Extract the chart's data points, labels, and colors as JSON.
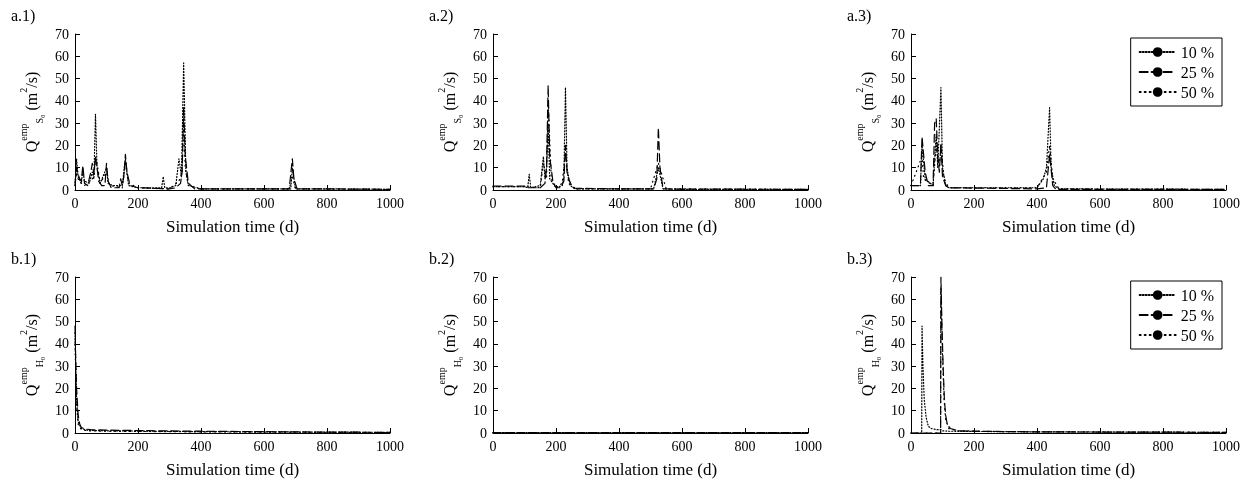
{
  "chart_data": [
    {
      "type": "line",
      "title": "a.1)",
      "xlabel": "Simulation time (d)",
      "ylabel": "Q$^{emp}$$_{S₀}$ (m$^{2}$/s)",
      "xlim": [
        0,
        1000
      ],
      "xticks": [
        0,
        200,
        400,
        600,
        800,
        1000
      ],
      "ylim": [
        0,
        70
      ],
      "yticks": [
        0,
        10,
        20,
        30,
        40,
        50,
        60,
        70
      ],
      "marker": "none",
      "grid": false,
      "series": [
        {
          "color": "#000000",
          "line_style": "dotted",
          "x": [
            0,
            5,
            10,
            20,
            25,
            30,
            45,
            55,
            60,
            65,
            70,
            80,
            100,
            105,
            120,
            150,
            160,
            170,
            200,
            275,
            280,
            285,
            300,
            320,
            330,
            338,
            345,
            352,
            360,
            400,
            500,
            600,
            685,
            690,
            700,
            800,
            1000
          ],
          "values": [
            2,
            14,
            6,
            3,
            9,
            4,
            3,
            8,
            5,
            34,
            10,
            3,
            10,
            3,
            2,
            2,
            14,
            2,
            1,
            1,
            6,
            1,
            1,
            2,
            14,
            6,
            57,
            8,
            2,
            0.5,
            0.5,
            0.5,
            0.5,
            10,
            0.5,
            0.5,
            0.3
          ]
        },
        {
          "color": "#000000",
          "line_style": "dashed",
          "x": [
            0,
            5,
            10,
            15,
            20,
            25,
            30,
            40,
            50,
            55,
            60,
            65,
            70,
            75,
            85,
            95,
            100,
            105,
            115,
            140,
            145,
            150,
            155,
            160,
            165,
            175,
            200,
            300,
            320,
            335,
            340,
            345,
            350,
            360,
            380,
            400,
            600,
            680,
            690,
            695,
            705,
            800,
            1000
          ],
          "values": [
            3,
            10,
            7,
            5,
            4,
            11,
            3,
            2,
            8,
            12,
            7,
            15,
            10,
            4,
            2,
            2,
            12,
            4,
            1,
            1,
            5,
            2,
            6,
            16,
            8,
            2,
            1,
            0.5,
            1,
            3,
            8,
            37,
            15,
            3,
            0.5,
            0.5,
            0.5,
            0.5,
            14,
            5,
            0.5,
            0.5,
            0.3
          ]
        },
        {
          "color": "#000000",
          "line_style": "dotted",
          "x": [
            0,
            5,
            10,
            20,
            30,
            50,
            60,
            65,
            70,
            80,
            100,
            110,
            150,
            160,
            170,
            200,
            300,
            330,
            340,
            345,
            350,
            360,
            400,
            680,
            690,
            700,
            1000
          ],
          "values": [
            2,
            8,
            5,
            3,
            2,
            4,
            6,
            14,
            12,
            3,
            8,
            2,
            1,
            12,
            3,
            1,
            0.5,
            4,
            8,
            30,
            10,
            2,
            0.5,
            0.5,
            6,
            0.5,
            0.3
          ]
        }
      ]
    },
    {
      "type": "line",
      "title": "a.2)",
      "xlabel": "Simulation time (d)",
      "ylabel": "Q$^{emp}$$_{S₀}$ (m$^{2}$/s)",
      "xlim": [
        0,
        1000
      ],
      "xticks": [
        0,
        200,
        400,
        600,
        800,
        1000
      ],
      "ylim": [
        0,
        70
      ],
      "yticks": [
        0,
        10,
        20,
        30,
        40,
        50,
        60,
        70
      ],
      "marker": "none",
      "grid": false,
      "series": [
        {
          "color": "#000000",
          "line_style": "dotted",
          "x": [
            0,
            100,
            110,
            115,
            120,
            150,
            160,
            165,
            170,
            175,
            180,
            200,
            220,
            225,
            230,
            235,
            245,
            260,
            400,
            510,
            525,
            540,
            600,
            1000
          ],
          "values": [
            1.5,
            1.5,
            1,
            7,
            1,
            2,
            15,
            5,
            10,
            30,
            5,
            1,
            2,
            6,
            46,
            10,
            2,
            0.5,
            0.5,
            0.5,
            10,
            0.5,
            0.3,
            0.3
          ]
        },
        {
          "color": "#000000",
          "line_style": "dashed",
          "x": [
            0,
            100,
            105,
            150,
            165,
            170,
            175,
            180,
            190,
            200,
            215,
            225,
            230,
            235,
            240,
            250,
            260,
            400,
            510,
            520,
            525,
            530,
            540,
            600,
            1000
          ],
          "values": [
            1.8,
            1.8,
            1,
            1,
            3,
            10,
            47,
            15,
            4,
            1,
            1,
            4,
            20,
            8,
            5,
            2,
            0.8,
            0.5,
            0.5,
            5,
            28,
            10,
            0.5,
            0.4,
            0.3
          ]
        },
        {
          "color": "#000000",
          "line_style": "dotted",
          "x": [
            0,
            100,
            150,
            160,
            170,
            175,
            185,
            200,
            220,
            230,
            240,
            260,
            500,
            525,
            550,
            1000
          ],
          "values": [
            1.5,
            1.5,
            1,
            12,
            5,
            40,
            5,
            1,
            3,
            18,
            3,
            0.5,
            0.5,
            12,
            0.5,
            0.3
          ]
        }
      ]
    },
    {
      "type": "line",
      "title": "a.3)",
      "xlabel": "Simulation time (d)",
      "ylabel": "Q$^{emp}$$_{S₀}$ (m$^{2}$/s)",
      "xlim": [
        0,
        1000
      ],
      "xticks": [
        0,
        200,
        400,
        600,
        800,
        1000
      ],
      "ylim": [
        0,
        70
      ],
      "yticks": [
        0,
        10,
        20,
        30,
        40,
        50,
        60,
        70
      ],
      "marker": "none",
      "grid": false,
      "legend": "top right",
      "series": [
        {
          "name": "10 %",
          "color": "#000000",
          "line_style": "dotted",
          "x": [
            0,
            30,
            35,
            45,
            70,
            80,
            85,
            95,
            100,
            110,
            120,
            400,
            420,
            430,
            440,
            445,
            455,
            470,
            1000
          ],
          "values": [
            2,
            2,
            20,
            5,
            2,
            25,
            10,
            46,
            10,
            2,
            1,
            1,
            5,
            10,
            37,
            10,
            2,
            0.5,
            0.3
          ]
        },
        {
          "name": "25 %",
          "color": "#000000",
          "line_style": "dashed",
          "x": [
            0,
            30,
            35,
            45,
            55,
            70,
            75,
            80,
            85,
            90,
            95,
            100,
            110,
            120,
            400,
            430,
            440,
            450,
            460,
            1000
          ],
          "values": [
            2,
            2,
            24,
            8,
            2,
            2,
            30,
            32,
            15,
            8,
            21,
            6,
            2,
            1,
            0.5,
            1,
            16,
            2,
            0.3,
            0.3
          ]
        },
        {
          "name": "50 %",
          "color": "#000000",
          "line_style": "dotted",
          "x": [
            0,
            35,
            40,
            70,
            80,
            90,
            95,
            105,
            120,
            400,
            430,
            440,
            450,
            470,
            1000
          ],
          "values": [
            2,
            15,
            5,
            2,
            20,
            10,
            20,
            5,
            1,
            1,
            8,
            20,
            5,
            0.5,
            0.3
          ]
        }
      ]
    },
    {
      "type": "line",
      "title": "b.1)",
      "xlabel": "Simulation time (d)",
      "ylabel": "Q$^{emp}$$_{H₀}$ (m$^{2}$/s)",
      "xlim": [
        0,
        1000
      ],
      "xticks": [
        0,
        200,
        400,
        600,
        800,
        1000
      ],
      "ylim": [
        0,
        70
      ],
      "yticks": [
        0,
        10,
        20,
        30,
        40,
        50,
        60,
        70
      ],
      "marker": "none",
      "grid": false,
      "series": [
        {
          "color": "#000000",
          "line_style": "dotted",
          "x": [
            0,
            5,
            10,
            20,
            40,
            100,
            400,
            1000
          ],
          "values": [
            45,
            15,
            5,
            2,
            1.2,
            1,
            0.6,
            0.3
          ]
        },
        {
          "color": "#000000",
          "line_style": "dashed",
          "x": [
            0,
            2,
            5,
            10,
            15,
            20,
            30,
            50,
            100,
            200,
            400,
            600,
            800,
            1000
          ],
          "values": [
            48,
            35,
            20,
            8,
            4,
            2.5,
            1.8,
            1.5,
            1.3,
            1.1,
            0.8,
            0.6,
            0.4,
            0.3
          ]
        },
        {
          "color": "#000000",
          "line_style": "dotted",
          "x": [
            0,
            5,
            10,
            20,
            40,
            100,
            400,
            1000
          ],
          "values": [
            40,
            12,
            4,
            1.5,
            1,
            0.8,
            0.5,
            0.2
          ]
        }
      ]
    },
    {
      "type": "line",
      "title": "b.2)",
      "xlabel": "Simulation time (d)",
      "ylabel": "Q$^{emp}$$_{H₀}$ (m$^{2}$/s)",
      "xlim": [
        0,
        1000
      ],
      "xticks": [
        0,
        200,
        400,
        600,
        800,
        1000
      ],
      "ylim": [
        0,
        70
      ],
      "yticks": [
        0,
        10,
        20,
        30,
        40,
        50,
        60,
        70
      ],
      "marker": "none",
      "grid": false,
      "series": [
        {
          "color": "#000000",
          "line_style": "dotted",
          "x": [
            0,
            500,
            1000
          ],
          "values": [
            0.2,
            0.2,
            0.2
          ]
        },
        {
          "color": "#000000",
          "line_style": "dashed",
          "x": [
            0,
            500,
            1000
          ],
          "values": [
            0.2,
            0.2,
            0.2
          ]
        },
        {
          "color": "#000000",
          "line_style": "dotted",
          "x": [
            0,
            500,
            1000
          ],
          "values": [
            0.2,
            0.2,
            0.2
          ]
        }
      ]
    },
    {
      "type": "line",
      "title": "b.3)",
      "xlabel": "Simulation time (d)",
      "ylabel": "Q$^{emp}$$_{H₀}$ (m$^{2}$/s)",
      "xlim": [
        0,
        1000
      ],
      "xticks": [
        0,
        200,
        400,
        600,
        800,
        1000
      ],
      "ylim": [
        0,
        70
      ],
      "yticks": [
        0,
        10,
        20,
        30,
        40,
        50,
        60,
        70
      ],
      "marker": "none",
      "grid": false,
      "legend": "top right",
      "series": [
        {
          "name": "10 %",
          "color": "#000000",
          "line_style": "dotted",
          "x": [
            0,
            34,
            35,
            38,
            42,
            48,
            55,
            65,
            80,
            95,
            100,
            120,
            200,
            400,
            1000
          ],
          "values": [
            0,
            0,
            48,
            30,
            15,
            7,
            3,
            2,
            1.5,
            1.5,
            1,
            0.8,
            0.7,
            0.5,
            0.3
          ]
        },
        {
          "name": "25 %",
          "color": "#000000",
          "line_style": "dashed",
          "x": [
            0,
            94,
            95,
            98,
            102,
            106,
            110,
            115,
            125,
            150,
            200,
            400,
            1000
          ],
          "values": [
            0,
            0,
            70,
            50,
            30,
            15,
            8,
            4,
            2,
            1,
            0.8,
            0.5,
            0.3
          ]
        },
        {
          "name": "50 %",
          "color": "#000000",
          "line_style": "dotted",
          "x": [
            0,
            94,
            95,
            100,
            105,
            110,
            120,
            150,
            300,
            1000
          ],
          "values": [
            0,
            0,
            65,
            35,
            15,
            6,
            2,
            1,
            0.6,
            0.3
          ]
        }
      ]
    }
  ]
}
